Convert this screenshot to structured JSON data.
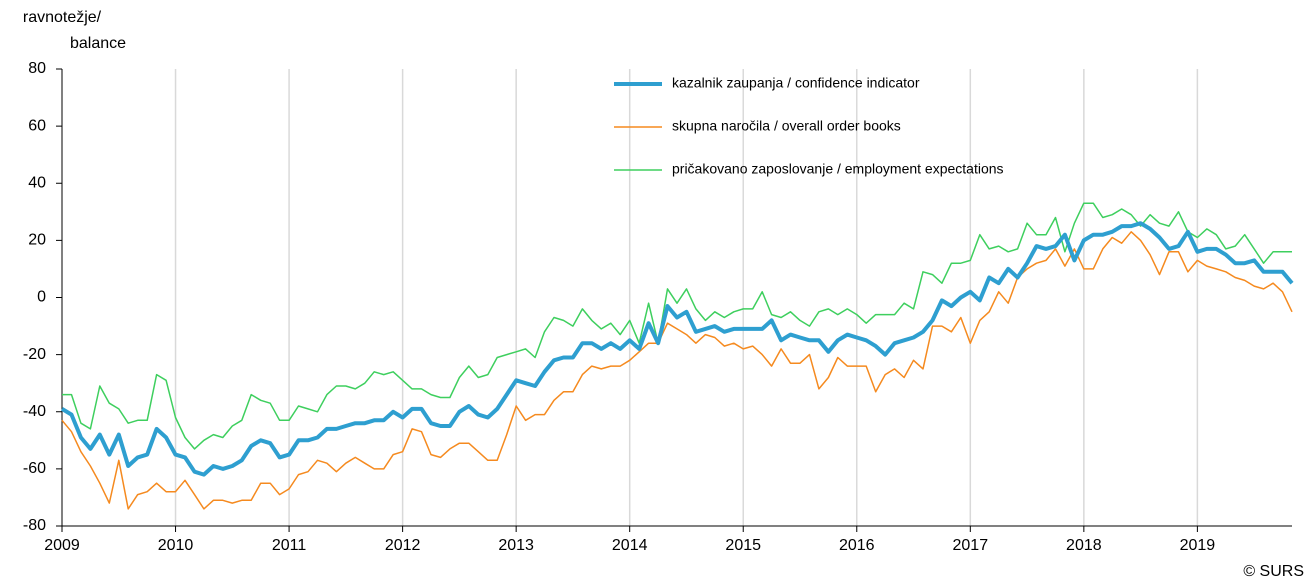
{
  "chart_data": {
    "type": "line",
    "ylabel": [
      "ravnotežje/",
      "balance"
    ],
    "source": "© SURS",
    "categories": [
      "2009",
      null,
      null,
      null,
      null,
      null,
      null,
      null,
      null,
      null,
      null,
      null,
      "2010",
      null,
      null,
      null,
      null,
      null,
      null,
      null,
      null,
      null,
      null,
      null,
      "2011",
      null,
      null,
      null,
      null,
      null,
      null,
      null,
      null,
      null,
      null,
      null,
      "2012",
      null,
      null,
      null,
      null,
      null,
      null,
      null,
      null,
      null,
      null,
      null,
      "2013",
      null,
      null,
      null,
      null,
      null,
      null,
      null,
      null,
      null,
      null,
      null,
      "2014",
      null,
      null,
      null,
      null,
      null,
      null,
      null,
      null,
      null,
      null,
      null,
      "2015",
      null,
      null,
      null,
      null,
      null,
      null,
      null,
      null,
      null,
      null,
      null,
      "2016",
      null,
      null,
      null,
      null,
      null,
      null,
      null,
      null,
      null,
      null,
      null,
      "2017",
      null,
      null,
      null,
      null,
      null,
      null,
      null,
      null,
      null,
      null,
      null,
      "2018",
      null,
      null,
      null,
      null,
      null,
      null,
      null,
      null,
      null,
      null,
      null,
      "2019",
      null,
      null,
      null,
      null,
      null,
      null,
      null,
      null,
      null,
      null
    ],
    "series": [
      {
        "name": "kazalnik zaupanja / confidence indicator",
        "color": "#2e9fd0",
        "width": 4,
        "values": [
          -39,
          -41,
          -49,
          -53,
          -48,
          -55,
          -48,
          -59,
          -56,
          -55,
          -46,
          -49,
          -55,
          -56,
          -61,
          -62,
          -59,
          -60,
          -59,
          -57,
          -52,
          -50,
          -51,
          -56,
          -55,
          -50,
          -50,
          -49,
          -46,
          -46,
          -45,
          -44,
          -44,
          -43,
          -43,
          -40,
          -42,
          -39,
          -39,
          -44,
          -45,
          -45,
          -40,
          -38,
          -41,
          -42,
          -39,
          -34,
          -29,
          -30,
          -31,
          -26,
          -22,
          -21,
          -21,
          -16,
          -16,
          -18,
          -16,
          -18,
          -15,
          -18,
          -9,
          -16,
          -3,
          -7,
          -5,
          -12,
          -11,
          -10,
          -12,
          -11,
          -11,
          -11,
          -11,
          -8,
          -15,
          -13,
          -14,
          -15,
          -15,
          -19,
          -15,
          -13,
          -14,
          -15,
          -17,
          -20,
          -16,
          -15,
          -14,
          -12,
          -8,
          -1,
          -3,
          0,
          2,
          -1,
          7,
          5,
          10,
          7,
          12,
          18,
          17,
          18,
          22,
          13,
          20,
          22,
          22,
          23,
          25,
          25,
          26,
          24,
          21,
          17,
          18,
          23,
          16,
          17,
          17,
          15,
          12,
          12,
          13,
          9,
          9,
          9,
          5
        ]
      },
      {
        "name": "skupna naročila / overall order books",
        "color": "#f58a1f",
        "width": 1.5,
        "values": [
          -43,
          -47,
          -54,
          -59,
          -65,
          -72,
          -57,
          -74,
          -69,
          -68,
          -65,
          -68,
          -68,
          -64,
          -69,
          -74,
          -71,
          -71,
          -72,
          -71,
          -71,
          -65,
          -65,
          -69,
          -67,
          -62,
          -61,
          -57,
          -58,
          -61,
          -58,
          -56,
          -58,
          -60,
          -60,
          -55,
          -54,
          -46,
          -47,
          -55,
          -56,
          -53,
          -51,
          -51,
          -54,
          -57,
          -57,
          -48,
          -38,
          -43,
          -41,
          -41,
          -36,
          -33,
          -33,
          -27,
          -24,
          -25,
          -24,
          -24,
          -22,
          -19,
          -16,
          -16,
          -9,
          -11,
          -13,
          -16,
          -13,
          -14,
          -17,
          -16,
          -18,
          -17,
          -20,
          -24,
          -18,
          -23,
          -23,
          -20,
          -32,
          -28,
          -21,
          -24,
          -24,
          -24,
          -33,
          -27,
          -25,
          -28,
          -22,
          -25,
          -10,
          -10,
          -12,
          -7,
          -16,
          -8,
          -5,
          2,
          -2,
          7,
          10,
          12,
          13,
          17,
          11,
          17,
          10,
          10,
          17,
          21,
          19,
          23,
          20,
          15,
          8,
          16,
          16,
          9,
          13,
          11,
          10,
          9,
          7,
          6,
          4,
          3,
          5,
          2,
          -5
        ]
      },
      {
        "name": "pričakovano zaposlovanje / employment expectations",
        "color": "#3ecf5e",
        "width": 1.5,
        "values": [
          -34,
          -34,
          -44,
          -46,
          -31,
          -37,
          -39,
          -44,
          -43,
          -43,
          -27,
          -29,
          -42,
          -49,
          -53,
          -50,
          -48,
          -49,
          -45,
          -43,
          -34,
          -36,
          -37,
          -43,
          -43,
          -38,
          -39,
          -40,
          -34,
          -31,
          -31,
          -32,
          -30,
          -26,
          -27,
          -26,
          -29,
          -32,
          -32,
          -34,
          -35,
          -35,
          -28,
          -24,
          -28,
          -27,
          -21,
          -20,
          -19,
          -18,
          -21,
          -12,
          -7,
          -8,
          -10,
          -4,
          -8,
          -11,
          -9,
          -13,
          -8,
          -16,
          -2,
          -16,
          3,
          -2,
          3,
          -4,
          -8,
          -5,
          -7,
          -5,
          -4,
          -4,
          2,
          -6,
          -7,
          -5,
          -8,
          -10,
          -5,
          -4,
          -6,
          -4,
          -6,
          -9,
          -6,
          -6,
          -6,
          -2,
          -4,
          9,
          8,
          5,
          12,
          12,
          13,
          22,
          17,
          18,
          16,
          17,
          26,
          22,
          22,
          28,
          16,
          26,
          33,
          33,
          28,
          29,
          31,
          29,
          25,
          29,
          26,
          25,
          30,
          23,
          21,
          24,
          22,
          17,
          18,
          22,
          17,
          12,
          16,
          16,
          16
        ]
      }
    ],
    "ylim": [
      -80,
      80
    ],
    "yticks": [
      -80,
      -60,
      -40,
      -20,
      0,
      20,
      40,
      60,
      80
    ],
    "grid": "x"
  }
}
